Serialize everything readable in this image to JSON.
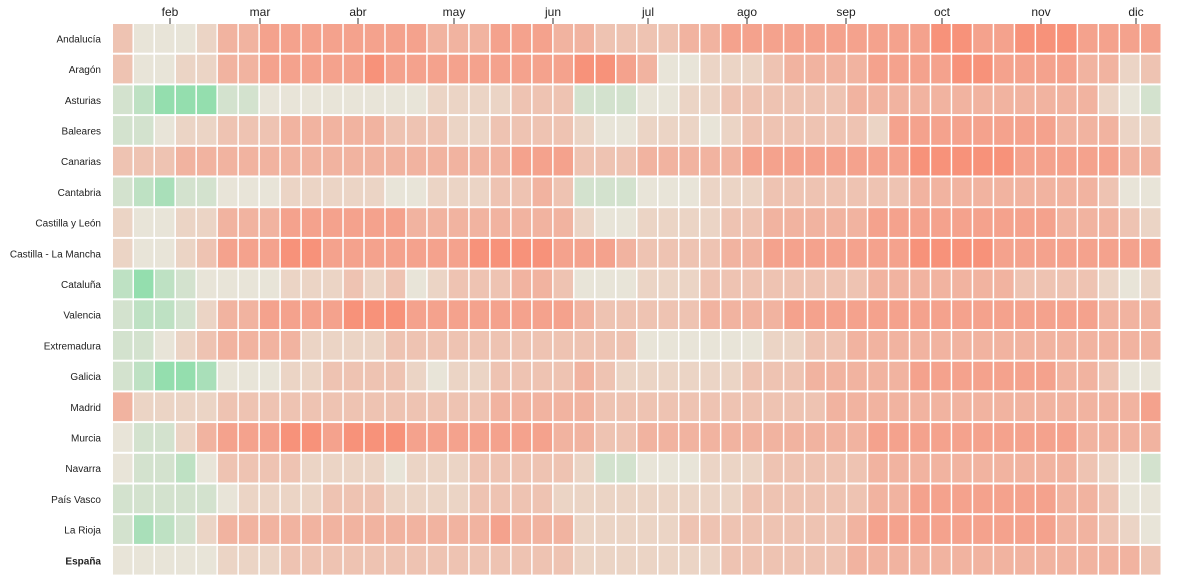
{
  "chart_data": {
    "type": "heatmap",
    "months": [
      "feb",
      "mar",
      "abr",
      "may",
      "jun",
      "jul",
      "ago",
      "sep",
      "oct",
      "nov",
      "dic"
    ],
    "highlight_row": "España",
    "scale": {
      "description_levels": [
        -5,
        5
      ],
      "negative_color": "#7fdca4",
      "neutral_color": "#e8e4d8",
      "positive_color": "#f7927a"
    },
    "rows": [
      {
        "name": "Andalucía",
        "values": [
          2,
          0,
          0,
          0,
          1,
          3,
          3,
          4,
          4,
          4,
          4,
          4,
          4,
          4,
          4,
          3,
          3,
          3,
          4,
          4,
          4,
          3,
          3,
          2,
          2,
          2,
          2,
          3,
          3,
          4,
          4,
          4,
          4,
          4,
          4,
          4,
          4,
          4,
          4,
          5,
          5,
          4,
          4,
          5,
          5,
          5,
          4,
          4,
          4,
          4
        ]
      },
      {
        "name": "Aragón",
        "values": [
          2,
          0,
          0,
          1,
          1,
          3,
          3,
          4,
          4,
          4,
          4,
          4,
          5,
          4,
          4,
          4,
          4,
          4,
          4,
          4,
          4,
          4,
          5,
          5,
          4,
          3,
          0,
          0,
          1,
          1,
          1,
          2,
          3,
          3,
          3,
          3,
          4,
          4,
          4,
          4,
          5,
          5,
          4,
          4,
          4,
          4,
          3,
          3,
          1,
          2
        ]
      },
      {
        "name": "Asturias",
        "values": [
          -1,
          -2,
          -4,
          -4,
          -4,
          -1,
          -1,
          0,
          0,
          0,
          0,
          0,
          0,
          0,
          0,
          1,
          1,
          1,
          1,
          2,
          2,
          2,
          -1,
          -1,
          -1,
          0,
          0,
          1,
          1,
          2,
          2,
          2,
          2,
          2,
          2,
          3,
          3,
          3,
          3,
          3,
          3,
          3,
          3,
          3,
          3,
          3,
          3,
          1,
          0,
          -1
        ]
      },
      {
        "name": "Baleares",
        "values": [
          -1,
          -1,
          0,
          1,
          1,
          2,
          2,
          2,
          3,
          3,
          3,
          3,
          3,
          2,
          2,
          2,
          1,
          1,
          2,
          2,
          2,
          2,
          1,
          0,
          0,
          1,
          1,
          1,
          0,
          1,
          2,
          2,
          2,
          2,
          2,
          2,
          1,
          4,
          4,
          4,
          4,
          4,
          4,
          4,
          4,
          3,
          3,
          3,
          1,
          1
        ]
      },
      {
        "name": "Canarias",
        "values": [
          2,
          2,
          2,
          3,
          3,
          3,
          3,
          3,
          3,
          3,
          3,
          3,
          3,
          3,
          3,
          3,
          3,
          3,
          3,
          4,
          4,
          4,
          2,
          2,
          2,
          3,
          3,
          3,
          3,
          3,
          4,
          4,
          4,
          4,
          4,
          4,
          4,
          4,
          5,
          5,
          5,
          5,
          5,
          4,
          4,
          4,
          4,
          4,
          3,
          3
        ]
      },
      {
        "name": "Cantabria",
        "values": [
          -1,
          -2,
          -3,
          -1,
          -1,
          0,
          0,
          0,
          1,
          1,
          1,
          1,
          1,
          0,
          0,
          1,
          1,
          1,
          2,
          2,
          3,
          2,
          -1,
          -1,
          -1,
          0,
          0,
          0,
          1,
          1,
          1,
          2,
          2,
          2,
          2,
          2,
          2,
          2,
          3,
          3,
          3,
          3,
          3,
          3,
          3,
          3,
          3,
          2,
          0,
          0
        ]
      },
      {
        "name": "Castilla y León",
        "values": [
          1,
          0,
          0,
          1,
          1,
          3,
          3,
          3,
          4,
          4,
          4,
          4,
          4,
          4,
          3,
          3,
          3,
          3,
          3,
          3,
          3,
          3,
          1,
          0,
          0,
          1,
          1,
          1,
          1,
          2,
          2,
          3,
          3,
          3,
          3,
          3,
          4,
          4,
          4,
          4,
          4,
          4,
          4,
          4,
          4,
          3,
          3,
          3,
          2,
          1
        ]
      },
      {
        "name": "Castilla - La Mancha",
        "values": [
          1,
          0,
          0,
          1,
          2,
          4,
          4,
          4,
          5,
          5,
          4,
          4,
          4,
          4,
          4,
          4,
          4,
          5,
          5,
          5,
          5,
          4,
          4,
          4,
          3,
          2,
          2,
          2,
          2,
          3,
          3,
          4,
          4,
          4,
          4,
          4,
          4,
          4,
          5,
          5,
          5,
          5,
          4,
          4,
          4,
          4,
          4,
          4,
          4,
          4
        ]
      },
      {
        "name": "Cataluña",
        "values": [
          -2,
          -4,
          -2,
          -1,
          0,
          0,
          0,
          0,
          1,
          1,
          1,
          2,
          1,
          2,
          0,
          1,
          2,
          2,
          2,
          3,
          3,
          2,
          0,
          0,
          0,
          1,
          1,
          1,
          2,
          2,
          2,
          2,
          2,
          2,
          2,
          2,
          3,
          3,
          3,
          3,
          3,
          3,
          3,
          2,
          2,
          2,
          2,
          1,
          0,
          1
        ]
      },
      {
        "name": "Valencia",
        "values": [
          -1,
          -2,
          -2,
          -1,
          1,
          3,
          3,
          4,
          4,
          4,
          4,
          5,
          5,
          5,
          4,
          4,
          4,
          4,
          4,
          4,
          4,
          4,
          3,
          2,
          2,
          2,
          2,
          2,
          3,
          3,
          3,
          3,
          4,
          4,
          4,
          4,
          4,
          4,
          4,
          4,
          4,
          4,
          4,
          4,
          4,
          4,
          4,
          3,
          3,
          3
        ]
      },
      {
        "name": "Extremadura",
        "values": [
          -1,
          -1,
          0,
          1,
          2,
          3,
          3,
          3,
          3,
          1,
          1,
          1,
          1,
          2,
          2,
          2,
          2,
          2,
          2,
          2,
          2,
          2,
          2,
          2,
          2,
          0,
          0,
          0,
          0,
          0,
          0,
          1,
          1,
          2,
          2,
          3,
          3,
          3,
          3,
          3,
          3,
          3,
          3,
          3,
          3,
          3,
          3,
          3,
          3,
          3
        ]
      },
      {
        "name": "Galicia",
        "values": [
          -1,
          -2,
          -4,
          -4,
          -3,
          0,
          0,
          0,
          1,
          1,
          2,
          2,
          2,
          2,
          1,
          0,
          1,
          1,
          2,
          2,
          2,
          2,
          3,
          2,
          1,
          1,
          1,
          1,
          1,
          1,
          2,
          2,
          2,
          3,
          3,
          3,
          3,
          3,
          4,
          4,
          4,
          4,
          4,
          4,
          4,
          3,
          3,
          2,
          0,
          0
        ]
      },
      {
        "name": "Madrid",
        "values": [
          3,
          1,
          1,
          1,
          1,
          2,
          2,
          2,
          2,
          2,
          2,
          2,
          2,
          2,
          2,
          2,
          2,
          2,
          3,
          3,
          3,
          3,
          3,
          2,
          2,
          2,
          2,
          2,
          2,
          2,
          2,
          2,
          2,
          2,
          3,
          3,
          3,
          3,
          3,
          3,
          3,
          3,
          3,
          3,
          3,
          3,
          3,
          3,
          3,
          4
        ]
      },
      {
        "name": "Murcia",
        "values": [
          0,
          -1,
          -1,
          1,
          3,
          4,
          4,
          4,
          5,
          5,
          4,
          5,
          5,
          5,
          4,
          4,
          4,
          4,
          4,
          4,
          4,
          3,
          3,
          2,
          2,
          3,
          3,
          3,
          3,
          3,
          3,
          3,
          3,
          3,
          3,
          3,
          4,
          4,
          4,
          4,
          4,
          4,
          4,
          4,
          4,
          4,
          3,
          3,
          3,
          3
        ]
      },
      {
        "name": "Navarra",
        "values": [
          0,
          -1,
          -1,
          -2,
          0,
          2,
          2,
          2,
          2,
          1,
          1,
          1,
          1,
          0,
          1,
          1,
          1,
          2,
          2,
          2,
          2,
          2,
          1,
          -1,
          -1,
          0,
          0,
          0,
          1,
          1,
          1,
          2,
          2,
          2,
          2,
          2,
          3,
          3,
          3,
          3,
          3,
          3,
          3,
          3,
          3,
          3,
          2,
          1,
          0,
          -1
        ]
      },
      {
        "name": "País Vasco",
        "values": [
          -1,
          -1,
          -1,
          -1,
          -1,
          0,
          1,
          1,
          1,
          1,
          2,
          2,
          2,
          1,
          1,
          1,
          1,
          2,
          2,
          2,
          2,
          1,
          1,
          1,
          1,
          1,
          1,
          1,
          1,
          1,
          2,
          2,
          2,
          2,
          2,
          2,
          3,
          3,
          4,
          4,
          4,
          4,
          4,
          4,
          4,
          3,
          3,
          2,
          0,
          0
        ]
      },
      {
        "name": "La Rioja",
        "values": [
          -1,
          -3,
          -2,
          -1,
          1,
          3,
          3,
          3,
          3,
          3,
          3,
          3,
          3,
          3,
          3,
          3,
          3,
          3,
          4,
          3,
          3,
          3,
          1,
          1,
          1,
          1,
          1,
          2,
          2,
          2,
          2,
          2,
          2,
          2,
          2,
          3,
          4,
          4,
          4,
          4,
          4,
          4,
          4,
          4,
          4,
          3,
          3,
          2,
          1,
          0
        ]
      },
      {
        "name": "España",
        "values": [
          0,
          0,
          0,
          0,
          0,
          1,
          1,
          1,
          2,
          2,
          2,
          2,
          2,
          2,
          2,
          2,
          2,
          2,
          2,
          2,
          2,
          2,
          1,
          1,
          1,
          1,
          1,
          1,
          1,
          2,
          2,
          2,
          2,
          2,
          2,
          3,
          3,
          3,
          3,
          3,
          3,
          3,
          3,
          3,
          3,
          3,
          3,
          3,
          3,
          2
        ]
      }
    ]
  }
}
